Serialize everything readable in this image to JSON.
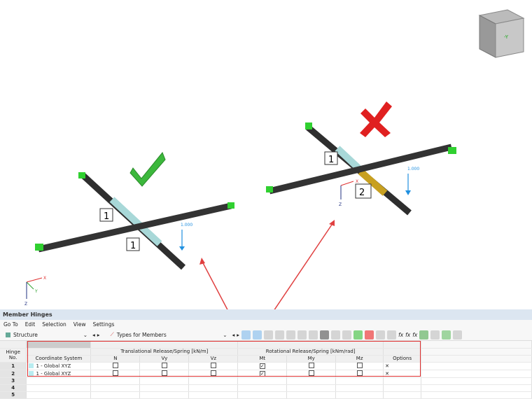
{
  "viewport": {
    "load_label_left": "1.000",
    "load_label_right": "1.000",
    "hinge_labels_left": [
      "1",
      "1"
    ],
    "hinge_labels_right": [
      "1",
      "2"
    ],
    "axis": {
      "x": "X",
      "y": "Y",
      "z": "Z"
    },
    "cube_label": "-Y",
    "ok_icon": "check-mark-icon",
    "wrong_icon": "x-mark-icon"
  },
  "panel": {
    "title": "Member Hinges",
    "menu": [
      "Go To",
      "Edit",
      "Selection",
      "View",
      "Settings"
    ],
    "toolbar": {
      "structure": "Structure",
      "types": "Types for Members"
    },
    "table": {
      "col_hinge": "Hinge",
      "col_no": "No.",
      "col_cs": "Coordinate System",
      "group_trans": "Translational Release/Spring [kN/m]",
      "group_rot": "Rotational Release/Spring [kNm/rad]",
      "trans": [
        "N",
        "Vy",
        "Vz"
      ],
      "rot": [
        "Mt",
        "My",
        "Mz"
      ],
      "options": "Options",
      "rows": [
        {
          "no": "1",
          "cs": "1 - Global XYZ",
          "N": false,
          "Vy": false,
          "Vz": false,
          "Mt": true,
          "My": false,
          "Mz": false,
          "opt": "✕"
        },
        {
          "no": "2",
          "cs": "1 - Global XYZ",
          "N": false,
          "Vy": false,
          "Vz": false,
          "Mt": true,
          "My": false,
          "Mz": false,
          "opt": "✕"
        },
        {
          "no": "3"
        },
        {
          "no": "4"
        },
        {
          "no": "5"
        }
      ]
    }
  },
  "colors": {
    "highlight": "#e03030",
    "hinge_ok": "#a8d8d8",
    "hinge_bad": "#c8a020",
    "support": "#30d030",
    "load": "#2090e0"
  }
}
